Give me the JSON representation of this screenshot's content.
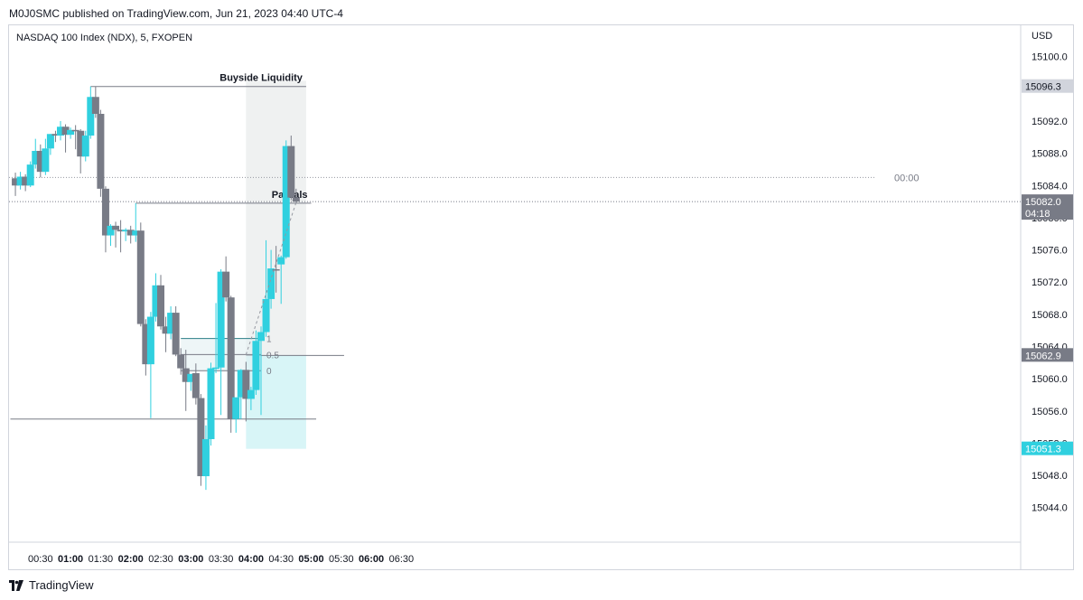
{
  "header": {
    "published": "M0J0SMC published on TradingView.com, Jun 21, 2023 04:40 UTC-4"
  },
  "footer": {
    "brand": "TradingView"
  },
  "colors": {
    "up": "#30d0df",
    "down": "#787b86",
    "box_upper": "#e9ecec",
    "box_lower": "#d6f4f7",
    "last_price": "#787b86",
    "low_label": "#30d0df"
  },
  "chart_data": {
    "type": "candlestick",
    "title": "NASDAQ 100 Index (NDX), 5, FXOPEN",
    "currency": "USD",
    "x_ticks": [
      {
        "label": "00:30",
        "bold": false
      },
      {
        "label": "01:00",
        "bold": true
      },
      {
        "label": "01:30",
        "bold": false
      },
      {
        "label": "02:00",
        "bold": true
      },
      {
        "label": "02:30",
        "bold": false
      },
      {
        "label": "03:00",
        "bold": true
      },
      {
        "label": "03:30",
        "bold": false
      },
      {
        "label": "04:00",
        "bold": true
      },
      {
        "label": "04:30",
        "bold": false
      },
      {
        "label": "05:00",
        "bold": true
      },
      {
        "label": "05:30",
        "bold": false
      },
      {
        "label": "06:00",
        "bold": true
      },
      {
        "label": "06:30",
        "bold": false
      }
    ],
    "x_tick_times": [
      "00:30",
      "01:00",
      "01:30",
      "02:00",
      "02:30",
      "03:00",
      "03:30",
      "04:00",
      "04:30",
      "05:00",
      "05:30",
      "06:00",
      "06:30"
    ],
    "y_ticks": [
      15100.0,
      15096.0,
      15092.0,
      15088.0,
      15084.0,
      15080.0,
      15076.0,
      15072.0,
      15068.0,
      15064.0,
      15060.0,
      15056.0,
      15052.0,
      15048.0,
      15044.0
    ],
    "y_tick_labels": [
      "15100.0",
      "15096.0",
      "15092.0",
      "15088.0",
      "15084.0",
      "15080.0",
      "15076.0",
      "15072.0",
      "15068.0",
      "15064.0",
      "15060.0",
      "15056.0",
      "15052.0",
      "15048.0",
      "15044.0"
    ],
    "ylim": [
      15041.5,
      15103.0
    ],
    "candles": [
      {
        "t": "00:05",
        "o": 15084.9,
        "h": 15085.6,
        "l": 15082.7,
        "c": 15084.0
      },
      {
        "t": "00:10",
        "o": 15084.0,
        "h": 15085.7,
        "l": 15083.5,
        "c": 15085.1
      },
      {
        "t": "00:15",
        "o": 15085.1,
        "h": 15085.4,
        "l": 15083.3,
        "c": 15084.0
      },
      {
        "t": "00:20",
        "o": 15084.0,
        "h": 15087.0,
        "l": 15083.8,
        "c": 15086.6
      },
      {
        "t": "00:25",
        "o": 15086.6,
        "h": 15089.8,
        "l": 15086.1,
        "c": 15088.3
      },
      {
        "t": "00:30",
        "o": 15088.3,
        "h": 15089.1,
        "l": 15085.0,
        "c": 15085.7
      },
      {
        "t": "00:35",
        "o": 15085.7,
        "h": 15089.8,
        "l": 15085.3,
        "c": 15088.6
      },
      {
        "t": "00:40",
        "o": 15088.6,
        "h": 15090.4,
        "l": 15087.8,
        "c": 15090.4
      },
      {
        "t": "00:45",
        "o": 15090.4,
        "h": 15090.8,
        "l": 15089.4,
        "c": 15090.2
      },
      {
        "t": "00:50",
        "o": 15090.2,
        "h": 15092.0,
        "l": 15089.6,
        "c": 15091.3
      },
      {
        "t": "00:55",
        "o": 15091.3,
        "h": 15091.6,
        "l": 15088.1,
        "c": 15090.3
      },
      {
        "t": "01:00",
        "o": 15090.3,
        "h": 15091.2,
        "l": 15089.8,
        "c": 15090.9
      },
      {
        "t": "01:05",
        "o": 15090.9,
        "h": 15091.5,
        "l": 15088.5,
        "c": 15090.8
      },
      {
        "t": "01:10",
        "o": 15090.8,
        "h": 15091.0,
        "l": 15085.5,
        "c": 15087.6
      },
      {
        "t": "01:15",
        "o": 15087.6,
        "h": 15090.8,
        "l": 15087.0,
        "c": 15090.2
      },
      {
        "t": "01:20",
        "o": 15090.2,
        "h": 15096.3,
        "l": 15089.8,
        "c": 15095.0
      },
      {
        "t": "01:25",
        "o": 15095.0,
        "h": 15096.3,
        "l": 15092.4,
        "c": 15092.9
      },
      {
        "t": "01:30",
        "o": 15092.9,
        "h": 15093.4,
        "l": 15082.6,
        "c": 15083.6
      },
      {
        "t": "01:35",
        "o": 15083.6,
        "h": 15083.9,
        "l": 15075.7,
        "c": 15077.8
      },
      {
        "t": "01:40",
        "o": 15077.8,
        "h": 15079.2,
        "l": 15076.5,
        "c": 15079.0
      },
      {
        "t": "01:45",
        "o": 15079.0,
        "h": 15079.5,
        "l": 15076.3,
        "c": 15078.5
      },
      {
        "t": "01:50",
        "o": 15078.5,
        "h": 15079.7,
        "l": 15075.7,
        "c": 15078.3
      },
      {
        "t": "01:55",
        "o": 15078.3,
        "h": 15078.7,
        "l": 15077.1,
        "c": 15078.5
      },
      {
        "t": "02:00",
        "o": 15078.5,
        "h": 15079.0,
        "l": 15076.8,
        "c": 15077.8
      },
      {
        "t": "02:05",
        "o": 15077.8,
        "h": 15081.8,
        "l": 15077.0,
        "c": 15078.4
      },
      {
        "t": "02:10",
        "o": 15078.4,
        "h": 15079.4,
        "l": 15066.5,
        "c": 15066.8
      },
      {
        "t": "02:15",
        "o": 15066.8,
        "h": 15067.4,
        "l": 15060.4,
        "c": 15061.8
      },
      {
        "t": "02:20",
        "o": 15061.8,
        "h": 15068.3,
        "l": 15055.1,
        "c": 15067.7
      },
      {
        "t": "02:25",
        "o": 15067.7,
        "h": 15073.1,
        "l": 15067.1,
        "c": 15071.6
      },
      {
        "t": "02:30",
        "o": 15071.6,
        "h": 15072.9,
        "l": 15066.1,
        "c": 15066.5
      },
      {
        "t": "02:35",
        "o": 15066.5,
        "h": 15067.7,
        "l": 15063.3,
        "c": 15065.6
      },
      {
        "t": "02:40",
        "o": 15065.6,
        "h": 15069.0,
        "l": 15064.9,
        "c": 15068.2
      },
      {
        "t": "02:45",
        "o": 15068.2,
        "h": 15069.0,
        "l": 15062.8,
        "c": 15063.0
      },
      {
        "t": "02:50",
        "o": 15063.0,
        "h": 15063.8,
        "l": 15060.5,
        "c": 15061.3
      },
      {
        "t": "02:55",
        "o": 15061.3,
        "h": 15063.6,
        "l": 15056.0,
        "c": 15059.6
      },
      {
        "t": "03:00",
        "o": 15059.6,
        "h": 15060.6,
        "l": 15058.5,
        "c": 15060.6
      },
      {
        "t": "03:05",
        "o": 15060.7,
        "h": 15061.9,
        "l": 15056.8,
        "c": 15057.6
      },
      {
        "t": "03:10",
        "o": 15057.6,
        "h": 15058.1,
        "l": 15046.7,
        "c": 15047.9
      },
      {
        "t": "03:15",
        "o": 15047.9,
        "h": 15054.2,
        "l": 15046.2,
        "c": 15052.5
      },
      {
        "t": "03:20",
        "o": 15052.5,
        "h": 15062.0,
        "l": 15051.7,
        "c": 15061.3
      },
      {
        "t": "03:25",
        "o": 15061.3,
        "h": 15069.4,
        "l": 15060.7,
        "c": 15061.4
      },
      {
        "t": "03:30",
        "o": 15061.4,
        "h": 15073.6,
        "l": 15055.5,
        "c": 15073.3
      },
      {
        "t": "03:35",
        "o": 15073.3,
        "h": 15075.2,
        "l": 15069.6,
        "c": 15070.1
      },
      {
        "t": "03:40",
        "o": 15070.1,
        "h": 15070.3,
        "l": 15053.3,
        "c": 15055.0
      },
      {
        "t": "03:45",
        "o": 15055.0,
        "h": 15057.2,
        "l": 15053.3,
        "c": 15057.7
      },
      {
        "t": "03:50",
        "o": 15057.7,
        "h": 15061.2,
        "l": 15055.0,
        "c": 15061.1
      },
      {
        "t": "03:55",
        "o": 15061.1,
        "h": 15062.1,
        "l": 15054.7,
        "c": 15057.5
      },
      {
        "t": "04:00",
        "o": 15057.5,
        "h": 15059.0,
        "l": 15056.1,
        "c": 15058.6
      },
      {
        "t": "04:05",
        "o": 15058.6,
        "h": 15066.0,
        "l": 15058.0,
        "c": 15064.7
      },
      {
        "t": "04:10",
        "o": 15064.7,
        "h": 15066.5,
        "l": 15055.5,
        "c": 15065.8
      },
      {
        "t": "04:15",
        "o": 15065.8,
        "h": 15077.2,
        "l": 15065.2,
        "c": 15069.9
      },
      {
        "t": "04:20",
        "o": 15069.9,
        "h": 15076.0,
        "l": 15068.7,
        "c": 15073.7
      },
      {
        "t": "04:25",
        "o": 15073.6,
        "h": 15076.5,
        "l": 15070.7,
        "c": 15073.5
      },
      {
        "t": "04:30",
        "o": 15074.2,
        "h": 15075.3,
        "l": 15069.3,
        "c": 15075.1
      },
      {
        "t": "04:35",
        "o": 15075.1,
        "h": 15089.6,
        "l": 15074.9,
        "c": 15088.9
      },
      {
        "t": "04:40",
        "o": 15088.9,
        "h": 15090.2,
        "l": 15082.2,
        "c": 15082.5
      },
      {
        "t": "04:45",
        "o": 15082.5,
        "h": 15083.6,
        "l": 15081.8,
        "c": 15082.0
      }
    ],
    "levels": [
      {
        "name": "Buyside Liquidity",
        "price": 15096.3,
        "from": "01:20",
        "to": "04:55"
      },
      {
        "name": "Partials",
        "price": 15081.8,
        "from": "02:05",
        "to": "05:00"
      },
      {
        "name": "",
        "price": 15055.0,
        "from": "00:00",
        "to": "05:05"
      }
    ],
    "fib": {
      "from": "02:50",
      "to": "04:10",
      "levels": [
        {
          "label": "1",
          "price": 15065.0
        },
        {
          "label": "0.5",
          "price": 15063.0
        },
        {
          "label": "0",
          "price": 15061.0
        }
      ]
    },
    "position_box": {
      "from": "03:55",
      "to": "04:55",
      "top": 15097.0,
      "entry": 15062.9,
      "bottom": 15051.3,
      "arrow_from": {
        "t": "03:55",
        "p": 15063.0
      },
      "arrow_to": {
        "t": "04:45",
        "p": 15081.9
      }
    },
    "dotted_line": {
      "price": 15085.0,
      "label": "00:00"
    },
    "price_labels": [
      {
        "price": 15096.3,
        "text": "15096.3",
        "style": "gray_box"
      },
      {
        "price": 15082.0,
        "text": "15082.0",
        "countdown": "04:18",
        "style": "dark"
      },
      {
        "price": 15062.9,
        "text": "15062.9",
        "style": "dark"
      },
      {
        "price": 15051.3,
        "text": "15051.3",
        "style": "cyan"
      }
    ]
  }
}
